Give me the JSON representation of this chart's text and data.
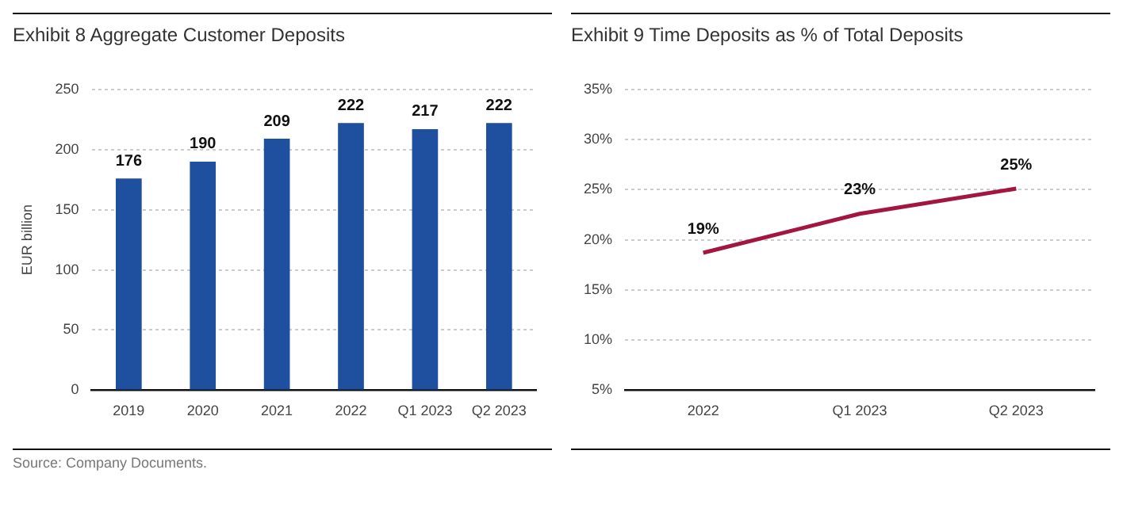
{
  "chart_data": [
    {
      "type": "bar",
      "title": "Exhibit 8 Aggregate Customer Deposits",
      "ylabel": "EUR billion",
      "categories": [
        "2019",
        "2020",
        "2021",
        "2022",
        "Q1 2023",
        "Q2 2023"
      ],
      "values": [
        176,
        190,
        209,
        222,
        217,
        222
      ],
      "color": "#1f4f9f",
      "ylim": [
        0,
        250
      ],
      "yticks": [
        0,
        50,
        100,
        150,
        200,
        250
      ],
      "grid": "y",
      "data_labels": true,
      "legend": false,
      "annotations": [
        "Source: Company Documents."
      ]
    },
    {
      "type": "line",
      "title": "Exhibit 9 Time Deposits as % of Total Deposits",
      "categories": [
        "2022",
        "Q1 2023",
        "Q2 2023"
      ],
      "values": [
        18.7,
        22.6,
        25.1
      ],
      "value_labels": [
        "19%",
        "23%",
        "25%"
      ],
      "color": "#a3163f",
      "marker": "none",
      "line_style": "solid",
      "ylim": [
        5,
        35
      ],
      "yticks": [
        {
          "value": 5,
          "label": "5%"
        },
        {
          "value": 10,
          "label": "10%"
        },
        {
          "value": 15,
          "label": "15%"
        },
        {
          "value": 20,
          "label": "20%"
        },
        {
          "value": 25,
          "label": "25%"
        },
        {
          "value": 30,
          "label": "30%"
        },
        {
          "value": 35,
          "label": "35%"
        }
      ],
      "grid": "y",
      "legend": false
    }
  ]
}
